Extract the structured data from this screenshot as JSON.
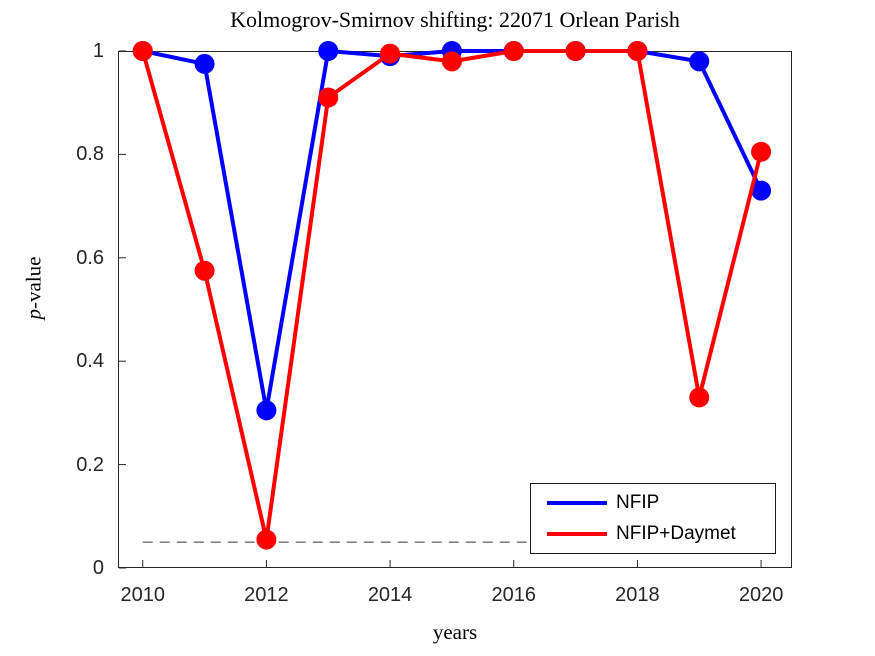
{
  "title": "Kolmogrov-Smirnov shifting: 22071 Orlean Parish",
  "chart_data": {
    "type": "line",
    "title": "Kolmogrov-Smirnov shifting: 22071 Orlean Parish",
    "xlabel": "years",
    "ylabel": "p-value",
    "ylabel_parts": {
      "em": "p",
      "text": "-value"
    },
    "x": [
      2010,
      2011,
      2012,
      2013,
      2014,
      2015,
      2016,
      2017,
      2018,
      2019,
      2020
    ],
    "series": [
      {
        "name": "NFIP",
        "color": "#0000ff",
        "values": [
          1.0,
          0.975,
          0.305,
          1.0,
          0.99,
          1.0,
          1.0,
          1.0,
          1.0,
          0.98,
          0.73
        ]
      },
      {
        "name": "NFIP+Daymet",
        "color": "#ff0000",
        "values": [
          1.0,
          0.575,
          0.055,
          0.91,
          0.995,
          0.98,
          1.0,
          1.0,
          1.0,
          0.33,
          0.805
        ]
      }
    ],
    "significance_line": {
      "value": 0.05,
      "style": "dashed",
      "color": "#6e6e6e"
    },
    "xticks": [
      "2010",
      "2012",
      "2014",
      "2016",
      "2018",
      "2020"
    ],
    "yticks": [
      "0",
      "0.2",
      "0.4",
      "0.6",
      "0.8",
      "1"
    ],
    "xlim": [
      2009.6,
      2020.5
    ],
    "ylim": [
      0,
      1
    ],
    "grid": false,
    "legend_position": "lower-right",
    "marker": "circle",
    "marker_radius": 10,
    "line_width": 4,
    "axis_color": "#262626"
  }
}
